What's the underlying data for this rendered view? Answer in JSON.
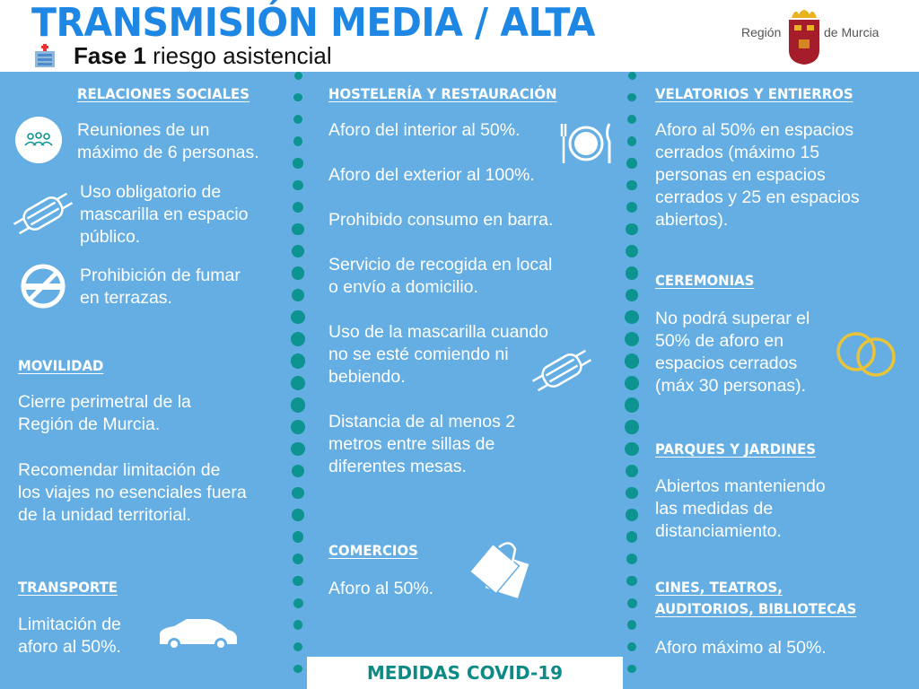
{
  "header": {
    "title": "TRANSMISIÓN MEDIA / ALTA",
    "phase_bold": "Fase 1",
    "phase_rest": " riesgo asistencial",
    "logo_left": "Región",
    "logo_right": "de Murcia"
  },
  "colors": {
    "title": "#1e86e3",
    "panel": "#64aee3",
    "dots": "#0d9490",
    "footer_text": "#0e8a86"
  },
  "col1": {
    "relaciones": {
      "heading": "RELACIONES SOCIALES ",
      "items": [
        "Reuniones de un\nmáximo de 6 personas.",
        "Uso obligatorio de\nmascarilla en espacio\npúblico.",
        "Prohibición de fumar\nen terrazas."
      ]
    },
    "movilidad": {
      "heading": "MOVILIDAD",
      "items": [
        "Cierre perimetral de la\nRegión de Murcia.",
        "Recomendar limitación de\nlos viajes no esenciales fuera\nde la unidad territorial."
      ]
    },
    "transporte": {
      "heading": "TRANSPORTE",
      "text": "Limitación de\naforo al 50%."
    }
  },
  "col2": {
    "hosteleria": {
      "heading": "HOSTELERÍA Y RESTAURACIÓN",
      "items": [
        "Aforo del interior al 50%.",
        "Aforo del exterior al 100%.",
        "Prohibido consumo en barra.",
        "Servicio de recogida en local\no envío a domicilio.",
        "Uso de la mascarilla cuando\nno se esté comiendo ni\nbebiendo.",
        "Distancia de al menos 2\nmetros entre sillas de\ndiferentes mesas."
      ]
    },
    "comercios": {
      "heading": "COMERCIOS",
      "text": "Aforo al 50%."
    }
  },
  "col3": {
    "velatorios": {
      "heading": "VELATORIOS Y ENTIERROS",
      "text": "Aforo al 50% en espacios\ncerrados (máximo 15\npersonas en espacios\ncerrados y 25 en espacios\nabiertos)."
    },
    "ceremonias": {
      "heading": "CEREMONIAS",
      "text": "No podrá superar el\n50% de aforo en\nespacios cerrados\n(máx 30 personas)."
    },
    "parques": {
      "heading": "PARQUES Y JARDINES",
      "text": "Abiertos manteniendo\nlas medidas de\ndistanciamiento."
    },
    "cines": {
      "heading": "CINES, TEATROS,\nAUDITORIOS, BIBLIOTECAS",
      "text": "Aforo máximo al 50%."
    }
  },
  "footer": {
    "label": "MEDIDAS COVID-19"
  }
}
